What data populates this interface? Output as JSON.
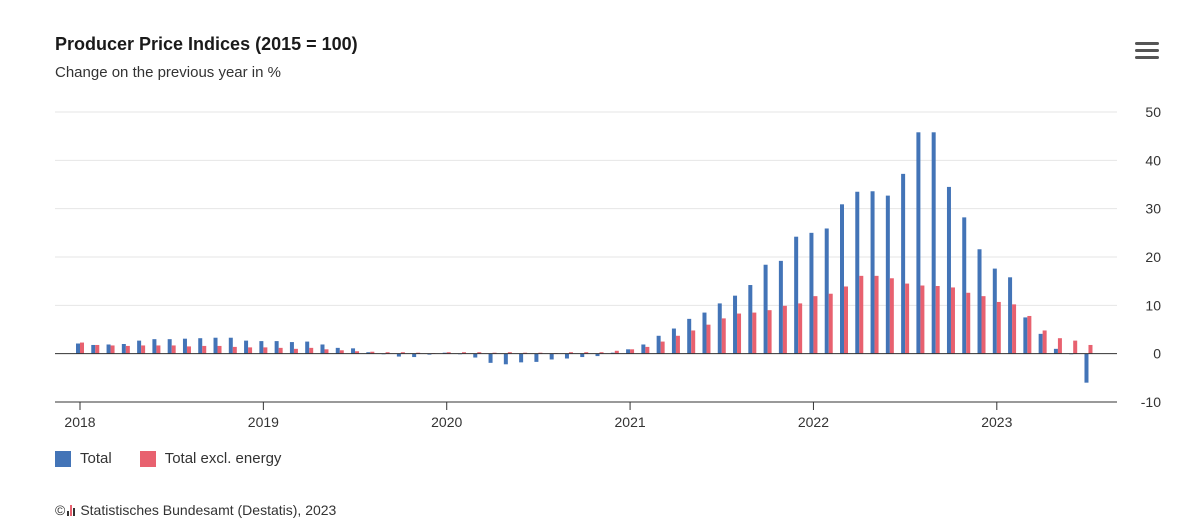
{
  "header": {
    "title": "Producer Price Indices (2015 = 100)",
    "subtitle": "Change on the previous year in %"
  },
  "menu": {
    "icon": "hamburger-menu-icon"
  },
  "legend": {
    "total": "Total",
    "excl_energy": "Total excl. energy"
  },
  "credits": {
    "copyright": "©",
    "text": "Statistisches Bundesamt (Destatis), 2023"
  },
  "colors": {
    "total": "#4374b7",
    "excl_energy": "#e8616f",
    "grid": "#e6e6e6",
    "axis": "#333333"
  },
  "chart_data": {
    "type": "bar",
    "x_ticks": [
      "2018",
      "2019",
      "2020",
      "2021",
      "2022",
      "2023"
    ],
    "yticks": [
      -10,
      0,
      10,
      20,
      30,
      40,
      50
    ],
    "ylim": [
      -10,
      50
    ],
    "y_axis_position": "right",
    "grid": true,
    "legend_position": "bottom-left",
    "categories": [
      "2018-01",
      "2018-02",
      "2018-03",
      "2018-04",
      "2018-05",
      "2018-06",
      "2018-07",
      "2018-08",
      "2018-09",
      "2018-10",
      "2018-11",
      "2018-12",
      "2019-01",
      "2019-02",
      "2019-03",
      "2019-04",
      "2019-05",
      "2019-06",
      "2019-07",
      "2019-08",
      "2019-09",
      "2019-10",
      "2019-11",
      "2019-12",
      "2020-01",
      "2020-02",
      "2020-03",
      "2020-04",
      "2020-05",
      "2020-06",
      "2020-07",
      "2020-08",
      "2020-09",
      "2020-10",
      "2020-11",
      "2020-12",
      "2021-01",
      "2021-02",
      "2021-03",
      "2021-04",
      "2021-05",
      "2021-06",
      "2021-07",
      "2021-08",
      "2021-09",
      "2021-10",
      "2021-11",
      "2021-12",
      "2022-01",
      "2022-02",
      "2022-03",
      "2022-04",
      "2022-05",
      "2022-06",
      "2022-07",
      "2022-08",
      "2022-09",
      "2022-10",
      "2022-11",
      "2022-12",
      "2023-01",
      "2023-02",
      "2023-03",
      "2023-04",
      "2023-05",
      "2023-06",
      "2023-07"
    ],
    "series": [
      {
        "name": "Total",
        "values": [
          2.1,
          1.8,
          1.9,
          2.0,
          2.7,
          3.0,
          3.0,
          3.1,
          3.2,
          3.3,
          3.3,
          2.7,
          2.6,
          2.6,
          2.4,
          2.5,
          1.9,
          1.2,
          1.1,
          0.3,
          -0.1,
          -0.6,
          -0.7,
          -0.2,
          0.2,
          -0.1,
          -0.8,
          -1.9,
          -2.2,
          -1.8,
          -1.7,
          -1.2,
          -1.0,
          -0.7,
          -0.5,
          0.2,
          0.9,
          1.9,
          3.7,
          5.2,
          7.2,
          8.5,
          10.4,
          12.0,
          14.2,
          18.4,
          19.2,
          24.2,
          25.0,
          25.9,
          30.9,
          33.5,
          33.6,
          32.7,
          37.2,
          45.8,
          45.8,
          34.5,
          28.2,
          21.6,
          17.6,
          15.8,
          7.5,
          4.1,
          1.0,
          -0.1,
          -6.0
        ]
      },
      {
        "name": "Total excl. energy",
        "values": [
          2.3,
          1.8,
          1.7,
          1.6,
          1.7,
          1.7,
          1.7,
          1.5,
          1.6,
          1.6,
          1.4,
          1.3,
          1.3,
          1.2,
          1.0,
          1.2,
          0.9,
          0.7,
          0.5,
          0.4,
          0.3,
          0.3,
          0.2,
          0.1,
          0.3,
          0.3,
          0.3,
          0.2,
          0.3,
          0.2,
          0.2,
          0.1,
          0.3,
          0.3,
          0.3,
          0.6,
          0.9,
          1.4,
          2.5,
          3.7,
          4.8,
          6.0,
          7.3,
          8.3,
          8.5,
          9.0,
          9.9,
          10.4,
          11.9,
          12.4,
          13.9,
          16.1,
          16.1,
          15.6,
          14.5,
          14.1,
          14.0,
          13.7,
          12.6,
          11.9,
          10.7,
          10.2,
          7.8,
          4.8,
          3.2,
          2.7,
          1.8
        ]
      }
    ]
  }
}
